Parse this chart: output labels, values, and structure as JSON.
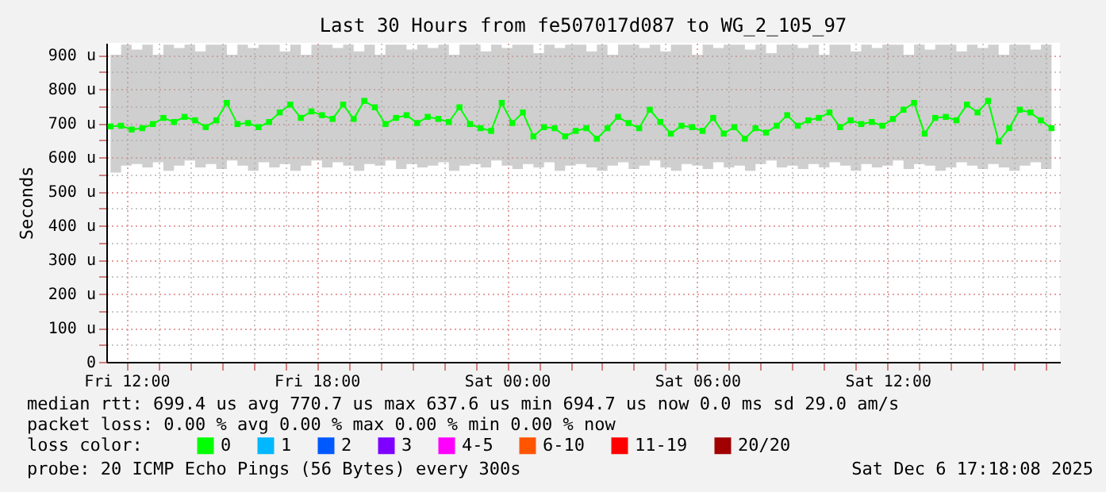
{
  "chart_data": {
    "type": "line",
    "title": "Last 30 Hours from fe507017d087 to WG_2_105_97",
    "ylabel": "Seconds",
    "x": [
      "2025-12-05T11:30",
      "2025-12-05T11:50",
      "2025-12-05T12:10",
      "2025-12-05T12:30",
      "2025-12-05T12:50",
      "2025-12-05T13:10",
      "2025-12-05T13:30",
      "2025-12-05T13:50",
      "2025-12-05T14:10",
      "2025-12-05T14:30",
      "2025-12-05T14:50",
      "2025-12-05T15:10",
      "2025-12-05T15:30",
      "2025-12-05T15:50",
      "2025-12-05T16:10",
      "2025-12-05T16:30",
      "2025-12-05T16:50",
      "2025-12-05T17:10",
      "2025-12-05T17:30",
      "2025-12-05T17:50",
      "2025-12-05T18:10",
      "2025-12-05T18:30",
      "2025-12-05T18:50",
      "2025-12-05T19:10",
      "2025-12-05T19:30",
      "2025-12-05T19:50",
      "2025-12-05T20:10",
      "2025-12-05T20:30",
      "2025-12-05T20:50",
      "2025-12-05T21:10",
      "2025-12-05T21:30",
      "2025-12-05T21:50",
      "2025-12-05T22:10",
      "2025-12-05T22:30",
      "2025-12-05T22:50",
      "2025-12-05T23:10",
      "2025-12-05T23:30",
      "2025-12-05T23:50",
      "2025-12-06T00:10",
      "2025-12-06T00:30",
      "2025-12-06T00:50",
      "2025-12-06T01:10",
      "2025-12-06T01:30",
      "2025-12-06T01:50",
      "2025-12-06T02:10",
      "2025-12-06T02:30",
      "2025-12-06T02:50",
      "2025-12-06T03:10",
      "2025-12-06T03:30",
      "2025-12-06T03:50",
      "2025-12-06T04:10",
      "2025-12-06T04:30",
      "2025-12-06T04:50",
      "2025-12-06T05:10",
      "2025-12-06T05:30",
      "2025-12-06T05:50",
      "2025-12-06T06:10",
      "2025-12-06T06:30",
      "2025-12-06T06:50",
      "2025-12-06T07:10",
      "2025-12-06T07:30",
      "2025-12-06T07:50",
      "2025-12-06T08:10",
      "2025-12-06T08:30",
      "2025-12-06T08:50",
      "2025-12-06T09:10",
      "2025-12-06T09:30",
      "2025-12-06T09:50",
      "2025-12-06T10:10",
      "2025-12-06T10:30",
      "2025-12-06T10:50",
      "2025-12-06T11:10",
      "2025-12-06T11:30",
      "2025-12-06T11:50",
      "2025-12-06T12:10",
      "2025-12-06T12:30",
      "2025-12-06T12:50",
      "2025-12-06T13:10",
      "2025-12-06T13:30",
      "2025-12-06T13:50",
      "2025-12-06T14:10",
      "2025-12-06T14:30",
      "2025-12-06T14:50",
      "2025-12-06T15:10",
      "2025-12-06T15:30",
      "2025-12-06T15:50",
      "2025-12-06T16:10",
      "2025-12-06T16:30",
      "2025-12-06T16:50",
      "2025-12-06T17:10"
    ],
    "series": [
      {
        "name": "0",
        "color": "#00ff00",
        "values": [
          690,
          692,
          681,
          685,
          697,
          715,
          703,
          718,
          708,
          688,
          708,
          759,
          697,
          700,
          688,
          703,
          731,
          754,
          715,
          734,
          723,
          712,
          754,
          712,
          765,
          746,
          697,
          715,
          723,
          700,
          718,
          712,
          703,
          746,
          697,
          685,
          677,
          759,
          700,
          731,
          661,
          688,
          685,
          661,
          677,
          685,
          654,
          685,
          718,
          700,
          685,
          739,
          703,
          669,
          692,
          688,
          677,
          715,
          669,
          688,
          654,
          685,
          672,
          692,
          723,
          692,
          708,
          715,
          731,
          688,
          708,
          697,
          703,
          692,
          712,
          739,
          759,
          669,
          715,
          718,
          708,
          754,
          731,
          765,
          646,
          685,
          739,
          731,
          708,
          685
        ],
        "lower": [
          555,
          575,
          580,
          570,
          585,
          560,
          575,
          590,
          570,
          580,
          565,
          590,
          575,
          560,
          585,
          570,
          580,
          560,
          575,
          590,
          570,
          585,
          575,
          560,
          580,
          575,
          590,
          565,
          580,
          570,
          575,
          585,
          560,
          575,
          580,
          570,
          590,
          575,
          565,
          580,
          570,
          585,
          560,
          575,
          580,
          570,
          560,
          575,
          585,
          565,
          575,
          590,
          570,
          560,
          580,
          575,
          565,
          585,
          570,
          575,
          560,
          580,
          590,
          570,
          575,
          565,
          580,
          570,
          585,
          575,
          560,
          580,
          570,
          575,
          590,
          565,
          580,
          575,
          560,
          570,
          585,
          575,
          565,
          580,
          570,
          560,
          575,
          585,
          565,
          575
        ],
        "upper": [
          900,
          930,
          915,
          930,
          900,
          930,
          920,
          930,
          910,
          930,
          930,
          900,
          930,
          920,
          930,
          930,
          910,
          930,
          900,
          930,
          930,
          920,
          930,
          910,
          930,
          900,
          930,
          930,
          915,
          930,
          920,
          930,
          900,
          930,
          930,
          910,
          930,
          920,
          930,
          930,
          905,
          930,
          920,
          930,
          930,
          910,
          930,
          900,
          930,
          930,
          920,
          930,
          910,
          930,
          930,
          900,
          930,
          920,
          930,
          930,
          915,
          930,
          905,
          930,
          930,
          920,
          930,
          900,
          930,
          930,
          910,
          930,
          920,
          930,
          930,
          900,
          930,
          915,
          930,
          930,
          910,
          930,
          920,
          930,
          900,
          930,
          930,
          915,
          930,
          905
        ]
      },
      {
        "name": "1",
        "color": "#00b8ff",
        "values": [
          null,
          null,
          null,
          null,
          null,
          null,
          null,
          null,
          null,
          null,
          null,
          null,
          null,
          null,
          null,
          null,
          null,
          null,
          null,
          null,
          null,
          null,
          null,
          null,
          null,
          null,
          null,
          null,
          null,
          null,
          null,
          null,
          null,
          null,
          null,
          null,
          null,
          null,
          null,
          null,
          null,
          null,
          null,
          null,
          null,
          null,
          null,
          null,
          null,
          null,
          null,
          null,
          null,
          null,
          null,
          null,
          null,
          null,
          null,
          null,
          null,
          null,
          null,
          null,
          null,
          null,
          null,
          null,
          null,
          null,
          null,
          null,
          null,
          null,
          null,
          null,
          null,
          null,
          null,
          null,
          null,
          null,
          null,
          null,
          null,
          null,
          null,
          null,
          null,
          null
        ]
      },
      {
        "name": "2",
        "color": "#0059ff",
        "values": [
          null,
          null,
          null,
          null,
          null,
          null,
          null,
          null,
          null,
          null,
          null,
          null,
          null,
          null,
          null,
          null,
          null,
          null,
          null,
          null,
          null,
          null,
          null,
          null,
          null,
          null,
          null,
          null,
          null,
          null,
          null,
          null,
          null,
          null,
          null,
          null,
          null,
          null,
          null,
          null,
          null,
          null,
          null,
          null,
          null,
          null,
          null,
          null,
          null,
          null,
          null,
          null,
          null,
          null,
          null,
          null,
          null,
          null,
          null,
          null,
          null,
          null,
          null,
          null,
          null,
          null,
          null,
          null,
          null,
          null,
          null,
          null,
          null,
          null,
          null,
          null,
          null,
          null,
          null,
          null,
          null,
          null,
          null,
          null,
          null,
          null,
          null,
          null,
          null,
          null
        ]
      },
      {
        "name": "3",
        "color": "#7e00ff",
        "values": [
          null,
          null,
          null,
          null,
          null,
          null,
          null,
          null,
          null,
          null,
          null,
          null,
          null,
          null,
          null,
          null,
          null,
          null,
          null,
          null,
          null,
          null,
          null,
          null,
          null,
          null,
          null,
          null,
          null,
          null,
          null,
          null,
          null,
          null,
          null,
          null,
          null,
          null,
          null,
          null,
          null,
          null,
          null,
          null,
          null,
          null,
          null,
          null,
          null,
          null,
          null,
          null,
          null,
          null,
          null,
          null,
          null,
          null,
          null,
          null,
          null,
          null,
          null,
          null,
          null,
          null,
          null,
          null,
          null,
          null,
          null,
          null,
          null,
          null,
          null,
          null,
          null,
          null,
          null,
          null,
          null,
          null,
          null,
          null,
          null,
          null,
          null,
          null,
          null,
          null
        ]
      },
      {
        "name": "4-5",
        "color": "#ff00ff",
        "values": [
          null,
          null,
          null,
          null,
          null,
          null,
          null,
          null,
          null,
          null,
          null,
          null,
          null,
          null,
          null,
          null,
          null,
          null,
          null,
          null,
          null,
          null,
          null,
          null,
          null,
          null,
          null,
          null,
          null,
          null,
          null,
          null,
          null,
          null,
          null,
          null,
          null,
          null,
          null,
          null,
          null,
          null,
          null,
          null,
          null,
          null,
          null,
          null,
          null,
          null,
          null,
          null,
          null,
          null,
          null,
          null,
          null,
          null,
          null,
          null,
          null,
          null,
          null,
          null,
          null,
          null,
          null,
          null,
          null,
          null,
          null,
          null,
          null,
          null,
          null,
          null,
          null,
          null,
          null,
          null,
          null,
          null,
          null,
          null,
          null,
          null,
          null,
          null,
          null,
          null
        ]
      },
      {
        "name": "6-10",
        "color": "#ff5500",
        "values": [
          null,
          null,
          null,
          null,
          null,
          null,
          null,
          null,
          null,
          null,
          null,
          null,
          null,
          null,
          null,
          null,
          null,
          null,
          null,
          null,
          null,
          null,
          null,
          null,
          null,
          null,
          null,
          null,
          null,
          null,
          null,
          null,
          null,
          null,
          null,
          null,
          null,
          null,
          null,
          null,
          null,
          null,
          null,
          null,
          null,
          null,
          null,
          null,
          null,
          null,
          null,
          null,
          null,
          null,
          null,
          null,
          null,
          null,
          null,
          null,
          null,
          null,
          null,
          null,
          null,
          null,
          null,
          null,
          null,
          null,
          null,
          null,
          null,
          null,
          null,
          null,
          null,
          null,
          null,
          null,
          null,
          null,
          null,
          null,
          null,
          null,
          null,
          null,
          null,
          null
        ]
      },
      {
        "name": "11-19",
        "color": "#ff0000",
        "values": [
          null,
          null,
          null,
          null,
          null,
          null,
          null,
          null,
          null,
          null,
          null,
          null,
          null,
          null,
          null,
          null,
          null,
          null,
          null,
          null,
          null,
          null,
          null,
          null,
          null,
          null,
          null,
          null,
          null,
          null,
          null,
          null,
          null,
          null,
          null,
          null,
          null,
          null,
          null,
          null,
          null,
          null,
          null,
          null,
          null,
          null,
          null,
          null,
          null,
          null,
          null,
          null,
          null,
          null,
          null,
          null,
          null,
          null,
          null,
          null,
          null,
          null,
          null,
          null,
          null,
          null,
          null,
          null,
          null,
          null,
          null,
          null,
          null,
          null,
          null,
          null,
          null,
          null,
          null,
          null,
          null,
          null,
          null,
          null,
          null,
          null,
          null,
          null,
          null,
          null
        ]
      },
      {
        "name": "20/20",
        "color": "#a10000",
        "values": [
          null,
          null,
          null,
          null,
          null,
          null,
          null,
          null,
          null,
          null,
          null,
          null,
          null,
          null,
          null,
          null,
          null,
          null,
          null,
          null,
          null,
          null,
          null,
          null,
          null,
          null,
          null,
          null,
          null,
          null,
          null,
          null,
          null,
          null,
          null,
          null,
          null,
          null,
          null,
          null,
          null,
          null,
          null,
          null,
          null,
          null,
          null,
          null,
          null,
          null,
          null,
          null,
          null,
          null,
          null,
          null,
          null,
          null,
          null,
          null,
          null,
          null,
          null,
          null,
          null,
          null,
          null,
          null,
          null,
          null,
          null,
          null,
          null,
          null,
          null,
          null,
          null,
          null,
          null,
          null,
          null,
          null,
          null,
          null,
          null,
          null,
          null,
          null,
          null,
          null
        ]
      }
    ],
    "legend": "bottom",
    "legend_title": "loss color:",
    "marker": "square",
    "grid": true,
    "xlim": [
      "2025-12-05T11:22",
      "2025-12-06T17:26"
    ],
    "xticks": [
      {
        "value": "2025-12-05T12:00",
        "label": "Fri 12:00"
      },
      {
        "value": "2025-12-05T13:00",
        "label": null
      },
      {
        "value": "2025-12-05T14:00",
        "label": null
      },
      {
        "value": "2025-12-05T15:00",
        "label": null
      },
      {
        "value": "2025-12-05T16:00",
        "label": null
      },
      {
        "value": "2025-12-05T17:00",
        "label": null
      },
      {
        "value": "2025-12-05T18:00",
        "label": "Fri 18:00"
      },
      {
        "value": "2025-12-05T19:00",
        "label": null
      },
      {
        "value": "2025-12-05T20:00",
        "label": null
      },
      {
        "value": "2025-12-05T21:00",
        "label": null
      },
      {
        "value": "2025-12-05T22:00",
        "label": null
      },
      {
        "value": "2025-12-05T23:00",
        "label": null
      },
      {
        "value": "2025-12-06T00:00",
        "label": "Sat 00:00"
      },
      {
        "value": "2025-12-06T01:00",
        "label": null
      },
      {
        "value": "2025-12-06T02:00",
        "label": null
      },
      {
        "value": "2025-12-06T03:00",
        "label": null
      },
      {
        "value": "2025-12-06T04:00",
        "label": null
      },
      {
        "value": "2025-12-06T05:00",
        "label": null
      },
      {
        "value": "2025-12-06T06:00",
        "label": "Sat 06:00"
      },
      {
        "value": "2025-12-06T07:00",
        "label": null
      },
      {
        "value": "2025-12-06T08:00",
        "label": null
      },
      {
        "value": "2025-12-06T09:00",
        "label": null
      },
      {
        "value": "2025-12-06T10:00",
        "label": null
      },
      {
        "value": "2025-12-06T11:00",
        "label": null
      },
      {
        "value": "2025-12-06T12:00",
        "label": "Sat 12:00"
      },
      {
        "value": "2025-12-06T13:00",
        "label": null
      },
      {
        "value": "2025-12-06T14:00",
        "label": null
      },
      {
        "value": "2025-12-06T15:00",
        "label": null
      },
      {
        "value": "2025-12-06T16:00",
        "label": null
      },
      {
        "value": "2025-12-06T17:00",
        "label": null
      }
    ],
    "ylim": [
      0,
      935
    ],
    "yticks": [
      0,
      {
        "value": 50,
        "label": null
      },
      {
        "value": 100,
        "label": "100 u"
      },
      {
        "value": 150,
        "label": null
      },
      {
        "value": 200,
        "label": "200 u"
      },
      {
        "value": 250,
        "label": null
      },
      {
        "value": 300,
        "label": "300 u"
      },
      {
        "value": 350,
        "label": null
      },
      {
        "value": 400,
        "label": "400 u"
      },
      {
        "value": 450,
        "label": null
      },
      {
        "value": 500,
        "label": "500 u"
      },
      {
        "value": 550,
        "label": null
      },
      {
        "value": 600,
        "label": "600 u"
      },
      {
        "value": 650,
        "label": null
      },
      {
        "value": 700,
        "label": "700 u"
      },
      {
        "value": 750,
        "label": null
      },
      {
        "value": 800,
        "label": "800 u"
      },
      {
        "value": 850,
        "label": null
      },
      {
        "value": 900,
        "label": "900 u"
      }
    ],
    "annotations": [
      "median rtt: 699.4 us avg 770.7 us max 637.6 us min 694.7 us now 0.0 ms sd 29.0 am/s",
      "packet loss: 0.00 % avg 0.00 % max 0.00 % min 0.00 % now",
      "probe: 20 ICMP Echo Pings (56 Bytes) every 300s",
      "Sat Dec 6 17:18:08 2025"
    ]
  }
}
